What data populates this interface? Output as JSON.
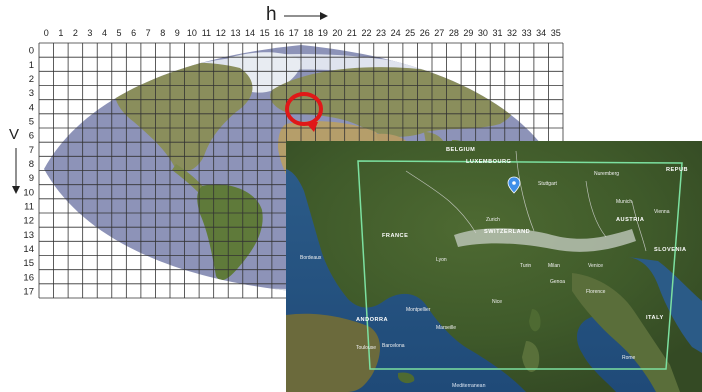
{
  "grid": {
    "h_axis_label": "h",
    "v_axis_label": "V",
    "columns": [
      "0",
      "1",
      "2",
      "3",
      "4",
      "5",
      "6",
      "7",
      "8",
      "9",
      "10",
      "11",
      "12",
      "13",
      "14",
      "15",
      "16",
      "17",
      "18",
      "19",
      "20",
      "21",
      "22",
      "23",
      "24",
      "25",
      "26",
      "27",
      "28",
      "29",
      "30",
      "31",
      "32",
      "33",
      "34",
      "35"
    ],
    "rows": [
      "0",
      "1",
      "2",
      "3",
      "4",
      "5",
      "6",
      "7",
      "8",
      "9",
      "10",
      "11",
      "12",
      "13",
      "14",
      "15",
      "16",
      "17"
    ],
    "highlighted_tile": {
      "h": 18,
      "v": 4
    },
    "colors": {
      "ocean": "#8d93b8",
      "land": "#8a8e5c",
      "grid_line": "#333333",
      "highlight": "#e01818"
    }
  },
  "satellite": {
    "box_color": "#7ce0a0",
    "labels": [
      {
        "text": "BELGIUM",
        "kind": "country"
      },
      {
        "text": "LUXEMBOURG",
        "kind": "country"
      },
      {
        "text": "FRANCE",
        "kind": "country"
      },
      {
        "text": "SWITZERLAND",
        "kind": "country"
      },
      {
        "text": "AUSTRIA",
        "kind": "country"
      },
      {
        "text": "SLOVENIA",
        "kind": "country"
      },
      {
        "text": "ITALY",
        "kind": "country"
      },
      {
        "text": "ANDORRA",
        "kind": "country"
      },
      {
        "text": "REPUB",
        "kind": "country"
      },
      {
        "text": "Stuttgart",
        "kind": "city"
      },
      {
        "text": "Nuremberg",
        "kind": "city"
      },
      {
        "text": "Munich",
        "kind": "city"
      },
      {
        "text": "Vienna",
        "kind": "city"
      },
      {
        "text": "Milan",
        "kind": "city"
      },
      {
        "text": "Turin",
        "kind": "city"
      },
      {
        "text": "Genoa",
        "kind": "city"
      },
      {
        "text": "Venice",
        "kind": "city"
      },
      {
        "text": "Lyon",
        "kind": "city"
      },
      {
        "text": "Marseille",
        "kind": "city"
      },
      {
        "text": "Nice",
        "kind": "city"
      },
      {
        "text": "Toulouse",
        "kind": "city"
      },
      {
        "text": "Bordeaux",
        "kind": "city"
      },
      {
        "text": "Barcelona",
        "kind": "city"
      },
      {
        "text": "Montpellier",
        "kind": "city"
      },
      {
        "text": "Zurich",
        "kind": "city"
      },
      {
        "text": "Florence",
        "kind": "city"
      },
      {
        "text": "Rome",
        "kind": "city"
      },
      {
        "text": "Mediterranean",
        "kind": "sea"
      }
    ]
  }
}
